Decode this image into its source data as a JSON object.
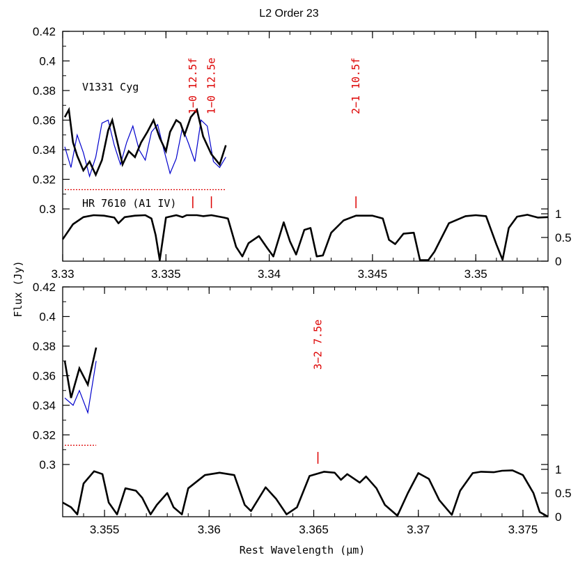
{
  "figure": {
    "title": "L2 Order 23",
    "ylabel": "Flux (Jy)",
    "xlabel": "Rest Wavelength (μm)"
  },
  "colors": {
    "observed": "#000000",
    "model": "#0000cc",
    "lines": "#dd0000"
  },
  "chart_data": [
    {
      "type": "line",
      "panel": "top",
      "target_label": "V1331 Cyg",
      "standard_label": "HR 7610 (A1 IV)",
      "xlim": [
        3.33,
        3.3535
      ],
      "ylim": [
        0.29,
        0.42
      ],
      "yticks": [
        0.3,
        0.32,
        0.34,
        0.36,
        0.38,
        0.4,
        0.42
      ],
      "ytick_labels": [
        "0.3",
        "0.32",
        "0.34",
        "0.36",
        "0.38",
        "0.4",
        "0.42"
      ],
      "xticks": [
        3.33,
        3.335,
        3.34,
        3.345,
        3.35
      ],
      "xtick_labels": [
        "3.33",
        "3.335",
        "3.34",
        "3.345",
        "3.35"
      ],
      "y2ticks": [
        0,
        0.5,
        1
      ],
      "y2tick_labels": [
        "0",
        "0.5",
        "1"
      ],
      "line_ids": [
        {
          "x": 3.3363,
          "label": "1−0 12.5f"
        },
        {
          "x": 3.3372,
          "label": "1−0 12.5e"
        },
        {
          "x": 3.3442,
          "label": "2−1 10.5f"
        }
      ],
      "segments": [
        {
          "observed": [
            [
              3.3301,
              0.362
            ],
            [
              3.3303,
              0.367
            ],
            [
              3.3305,
              0.345
            ],
            [
              3.3307,
              0.336
            ],
            [
              3.331,
              0.326
            ],
            [
              3.3313,
              0.332
            ],
            [
              3.3316,
              0.323
            ],
            [
              3.3319,
              0.333
            ],
            [
              3.3322,
              0.353
            ],
            [
              3.3324,
              0.36
            ],
            [
              3.3327,
              0.342
            ],
            [
              3.3329,
              0.33
            ],
            [
              3.3332,
              0.339
            ],
            [
              3.3335,
              0.335
            ],
            [
              3.3338,
              0.345
            ],
            [
              3.3341,
              0.352
            ],
            [
              3.3344,
              0.36
            ],
            [
              3.3347,
              0.348
            ],
            [
              3.335,
              0.339
            ],
            [
              3.3352,
              0.352
            ],
            [
              3.3355,
              0.36
            ],
            [
              3.3357,
              0.358
            ],
            [
              3.3359,
              0.35
            ],
            [
              3.3362,
              0.362
            ],
            [
              3.3365,
              0.367
            ],
            [
              3.3368,
              0.349
            ],
            [
              3.3372,
              0.337
            ],
            [
              3.3376,
              0.33
            ],
            [
              3.3379,
              0.343
            ]
          ],
          "model": [
            [
              3.3301,
              0.342
            ],
            [
              3.3304,
              0.328
            ],
            [
              3.3307,
              0.35
            ],
            [
              3.331,
              0.338
            ],
            [
              3.3313,
              0.322
            ],
            [
              3.3316,
              0.335
            ],
            [
              3.3319,
              0.358
            ],
            [
              3.3322,
              0.36
            ],
            [
              3.3325,
              0.343
            ],
            [
              3.3328,
              0.33
            ],
            [
              3.3331,
              0.345
            ],
            [
              3.3334,
              0.356
            ],
            [
              3.3337,
              0.34
            ],
            [
              3.334,
              0.333
            ],
            [
              3.3343,
              0.352
            ],
            [
              3.3346,
              0.357
            ],
            [
              3.3349,
              0.34
            ],
            [
              3.3352,
              0.324
            ],
            [
              3.3355,
              0.334
            ],
            [
              3.3358,
              0.355
            ],
            [
              3.3361,
              0.344
            ],
            [
              3.3364,
              0.332
            ],
            [
              3.3367,
              0.36
            ],
            [
              3.337,
              0.356
            ],
            [
              3.3373,
              0.332
            ],
            [
              3.3376,
              0.328
            ],
            [
              3.3379,
              0.335
            ]
          ]
        }
      ],
      "line_model": [
        [
          3.3301,
          0.313
        ],
        [
          3.3379,
          0.313
        ]
      ],
      "standard": [
        [
          3.33,
          0.46
        ],
        [
          3.3305,
          0.78
        ],
        [
          3.331,
          0.93
        ],
        [
          3.3315,
          0.97
        ],
        [
          3.332,
          0.96
        ],
        [
          3.3325,
          0.92
        ],
        [
          3.3327,
          0.8
        ],
        [
          3.333,
          0.93
        ],
        [
          3.3335,
          0.96
        ],
        [
          3.334,
          0.97
        ],
        [
          3.3343,
          0.9
        ],
        [
          3.3345,
          0.55
        ],
        [
          3.3347,
          0.02
        ],
        [
          3.335,
          0.92
        ],
        [
          3.3355,
          0.97
        ],
        [
          3.3358,
          0.93
        ],
        [
          3.336,
          0.97
        ],
        [
          3.3365,
          0.97
        ],
        [
          3.3368,
          0.95
        ],
        [
          3.3372,
          0.97
        ],
        [
          3.3378,
          0.92
        ],
        [
          3.338,
          0.9
        ],
        [
          3.3384,
          0.3
        ],
        [
          3.3387,
          0.1
        ],
        [
          3.339,
          0.38
        ],
        [
          3.3395,
          0.53
        ],
        [
          3.3399,
          0.28
        ],
        [
          3.3402,
          0.1
        ],
        [
          3.3407,
          0.82
        ],
        [
          3.341,
          0.42
        ],
        [
          3.3413,
          0.14
        ],
        [
          3.3417,
          0.66
        ],
        [
          3.342,
          0.7
        ],
        [
          3.3423,
          0.1
        ],
        [
          3.3426,
          0.12
        ],
        [
          3.343,
          0.6
        ],
        [
          3.3436,
          0.86
        ],
        [
          3.3442,
          0.96
        ],
        [
          3.345,
          0.96
        ],
        [
          3.3455,
          0.9
        ],
        [
          3.3458,
          0.45
        ],
        [
          3.3461,
          0.36
        ],
        [
          3.3465,
          0.58
        ],
        [
          3.347,
          0.6
        ],
        [
          3.3473,
          0.02
        ],
        [
          3.3477,
          0.02
        ],
        [
          3.348,
          0.2
        ],
        [
          3.3487,
          0.8
        ],
        [
          3.3495,
          0.95
        ],
        [
          3.35,
          0.97
        ],
        [
          3.3505,
          0.95
        ],
        [
          3.351,
          0.35
        ],
        [
          3.3513,
          0.03
        ],
        [
          3.3516,
          0.7
        ],
        [
          3.352,
          0.94
        ],
        [
          3.3525,
          0.98
        ],
        [
          3.353,
          0.92
        ],
        [
          3.3535,
          0.93
        ]
      ]
    },
    {
      "type": "line",
      "panel": "bottom",
      "xlim": [
        3.353,
        3.3762
      ],
      "ylim": [
        0.29,
        0.42
      ],
      "yticks": [
        0.3,
        0.32,
        0.34,
        0.36,
        0.38,
        0.4,
        0.42
      ],
      "ytick_labels": [
        "0.3",
        "0.32",
        "0.34",
        "0.36",
        "0.38",
        "0.4",
        "0.42"
      ],
      "xticks": [
        3.355,
        3.36,
        3.365,
        3.37,
        3.375
      ],
      "xtick_labels": [
        "3.355",
        "3.36",
        "3.365",
        "3.37",
        "3.375"
      ],
      "y2ticks": [
        0,
        0.5,
        1
      ],
      "y2tick_labels": [
        "0",
        "0.5",
        "1"
      ],
      "line_ids": [
        {
          "x": 3.3652,
          "label": "3−2 7.5e"
        }
      ],
      "segments": [
        {
          "observed": [
            [
              3.3531,
              0.37
            ],
            [
              3.3534,
              0.345
            ],
            [
              3.3538,
              0.365
            ],
            [
              3.3542,
              0.354
            ],
            [
              3.3546,
              0.379
            ]
          ],
          "model": [
            [
              3.3531,
              0.345
            ],
            [
              3.3535,
              0.34
            ],
            [
              3.3538,
              0.35
            ],
            [
              3.3542,
              0.335
            ],
            [
              3.3546,
              0.37
            ]
          ]
        }
      ],
      "line_model": [
        [
          3.3531,
          0.313
        ],
        [
          3.3546,
          0.313
        ]
      ],
      "standard": [
        [
          3.353,
          0.3
        ],
        [
          3.3534,
          0.2
        ],
        [
          3.3537,
          0.05
        ],
        [
          3.354,
          0.7
        ],
        [
          3.3545,
          0.96
        ],
        [
          3.3549,
          0.9
        ],
        [
          3.3552,
          0.3
        ],
        [
          3.3556,
          0.05
        ],
        [
          3.356,
          0.6
        ],
        [
          3.3565,
          0.55
        ],
        [
          3.3568,
          0.4
        ],
        [
          3.3572,
          0.05
        ],
        [
          3.3575,
          0.25
        ],
        [
          3.358,
          0.5
        ],
        [
          3.3583,
          0.2
        ],
        [
          3.3587,
          0.05
        ],
        [
          3.359,
          0.6
        ],
        [
          3.3598,
          0.88
        ],
        [
          3.3605,
          0.93
        ],
        [
          3.3612,
          0.88
        ],
        [
          3.3617,
          0.25
        ],
        [
          3.362,
          0.12
        ],
        [
          3.3627,
          0.62
        ],
        [
          3.3632,
          0.38
        ],
        [
          3.3637,
          0.05
        ],
        [
          3.3642,
          0.2
        ],
        [
          3.3648,
          0.86
        ],
        [
          3.3655,
          0.95
        ],
        [
          3.366,
          0.93
        ],
        [
          3.3663,
          0.78
        ],
        [
          3.3666,
          0.9
        ],
        [
          3.3672,
          0.72
        ],
        [
          3.3675,
          0.85
        ],
        [
          3.368,
          0.6
        ],
        [
          3.3684,
          0.25
        ],
        [
          3.369,
          0.02
        ],
        [
          3.3695,
          0.5
        ],
        [
          3.37,
          0.92
        ],
        [
          3.3705,
          0.8
        ],
        [
          3.371,
          0.35
        ],
        [
          3.3716,
          0.04
        ],
        [
          3.372,
          0.55
        ],
        [
          3.3726,
          0.92
        ],
        [
          3.373,
          0.95
        ],
        [
          3.3736,
          0.94
        ],
        [
          3.374,
          0.97
        ],
        [
          3.3745,
          0.98
        ],
        [
          3.375,
          0.88
        ],
        [
          3.3755,
          0.5
        ],
        [
          3.3758,
          0.1
        ],
        [
          3.3762,
          0.0
        ]
      ]
    }
  ]
}
